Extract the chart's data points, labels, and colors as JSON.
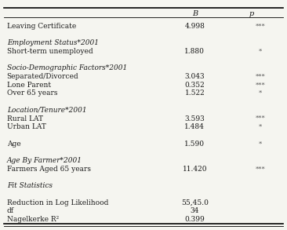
{
  "rows": [
    {
      "label": "Leaving Certificate",
      "indent": 0,
      "italic": false,
      "bold": false,
      "B": "4.998",
      "p": "***"
    },
    {
      "label": "",
      "indent": 0,
      "italic": false,
      "bold": false,
      "B": "",
      "p": ""
    },
    {
      "label": "Employment Status*2001",
      "indent": 0,
      "italic": true,
      "bold": false,
      "B": "",
      "p": ""
    },
    {
      "label": "Short-term unemployed",
      "indent": 0,
      "italic": false,
      "bold": false,
      "B": "1.880",
      "p": "*"
    },
    {
      "label": "",
      "indent": 0,
      "italic": false,
      "bold": false,
      "B": "",
      "p": ""
    },
    {
      "label": "Socio-Demographic Factors*2001",
      "indent": 0,
      "italic": true,
      "bold": false,
      "B": "",
      "p": ""
    },
    {
      "label": "Separated/Divorced",
      "indent": 0,
      "italic": false,
      "bold": false,
      "B": "3.043",
      "p": "***"
    },
    {
      "label": "Lone Parent",
      "indent": 0,
      "italic": false,
      "bold": false,
      "B": "0.352",
      "p": "***"
    },
    {
      "label": "Over 65 years",
      "indent": 0,
      "italic": false,
      "bold": false,
      "B": "1.522",
      "p": "*"
    },
    {
      "label": "",
      "indent": 0,
      "italic": false,
      "bold": false,
      "B": "",
      "p": ""
    },
    {
      "label": "Location/Tenure*2001",
      "indent": 0,
      "italic": true,
      "bold": false,
      "B": "",
      "p": ""
    },
    {
      "label": "Rural LAT",
      "indent": 0,
      "italic": false,
      "bold": false,
      "B": "3.593",
      "p": "***"
    },
    {
      "label": "Urban LAT",
      "indent": 0,
      "italic": false,
      "bold": false,
      "B": "1.484",
      "p": "*"
    },
    {
      "label": "",
      "indent": 0,
      "italic": false,
      "bold": false,
      "B": "",
      "p": ""
    },
    {
      "label": "Age",
      "indent": 0,
      "italic": false,
      "bold": false,
      "B": "1.590",
      "p": "*"
    },
    {
      "label": "",
      "indent": 0,
      "italic": false,
      "bold": false,
      "B": "",
      "p": ""
    },
    {
      "label": "Age By Farmer*2001",
      "indent": 0,
      "italic": true,
      "bold": false,
      "B": "",
      "p": ""
    },
    {
      "label": "Farmers Aged 65 years",
      "indent": 0,
      "italic": false,
      "bold": false,
      "B": "11.420",
      "p": "***"
    },
    {
      "label": "",
      "indent": 0,
      "italic": false,
      "bold": false,
      "B": "",
      "p": ""
    },
    {
      "label": "Fit Statistics",
      "indent": 0,
      "italic": true,
      "bold": false,
      "B": "",
      "p": ""
    },
    {
      "label": "",
      "indent": 0,
      "italic": false,
      "bold": false,
      "B": "",
      "p": ""
    },
    {
      "label": "Reduction in Log Likelihood",
      "indent": 0,
      "italic": false,
      "bold": false,
      "B": "55,45.0",
      "p": ""
    },
    {
      "label": "df",
      "indent": 0,
      "italic": false,
      "bold": false,
      "B": "34",
      "p": ""
    },
    {
      "label": "Nagelkerke R²",
      "indent": 0,
      "italic": false,
      "bold": false,
      "B": "0.399",
      "p": ""
    }
  ],
  "col_header_B": "B",
  "col_header_p": "p",
  "bg_color": "#f5f5f0",
  "text_color": "#1a1a1a",
  "font_size": 6.5,
  "header_font_size": 7.0
}
